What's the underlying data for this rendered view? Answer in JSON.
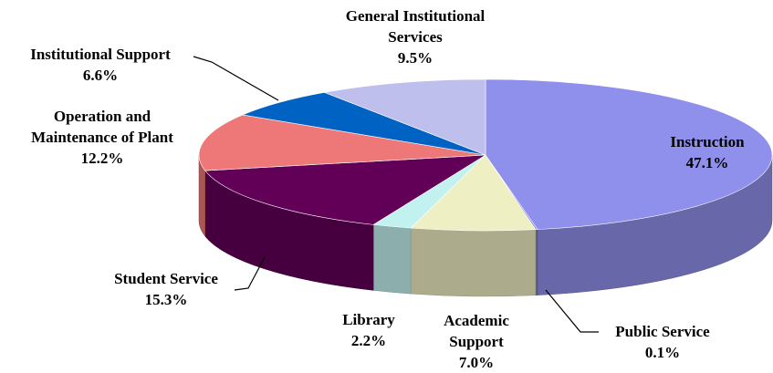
{
  "chart_data": {
    "type": "pie3d",
    "categories": [
      "Instruction",
      "Public Service",
      "Academic Support",
      "Library",
      "Student Service",
      "Operation and Maintenance of Plant",
      "Institutional Support",
      "General Institutional Services"
    ],
    "values": [
      47.1,
      0.1,
      7.0,
      2.2,
      15.3,
      12.2,
      6.6,
      9.5
    ],
    "value_labels": [
      "47.1%",
      "0.1%",
      "7.0%",
      "2.2%",
      "15.3%",
      "12.2%",
      "6.6%",
      "9.5%"
    ],
    "colors": [
      "#8f8fec",
      "#7a7ac8",
      "#efefc4",
      "#c2f2f0",
      "#620058",
      "#ee7777",
      "#0062c2",
      "#bfbfee"
    ]
  }
}
